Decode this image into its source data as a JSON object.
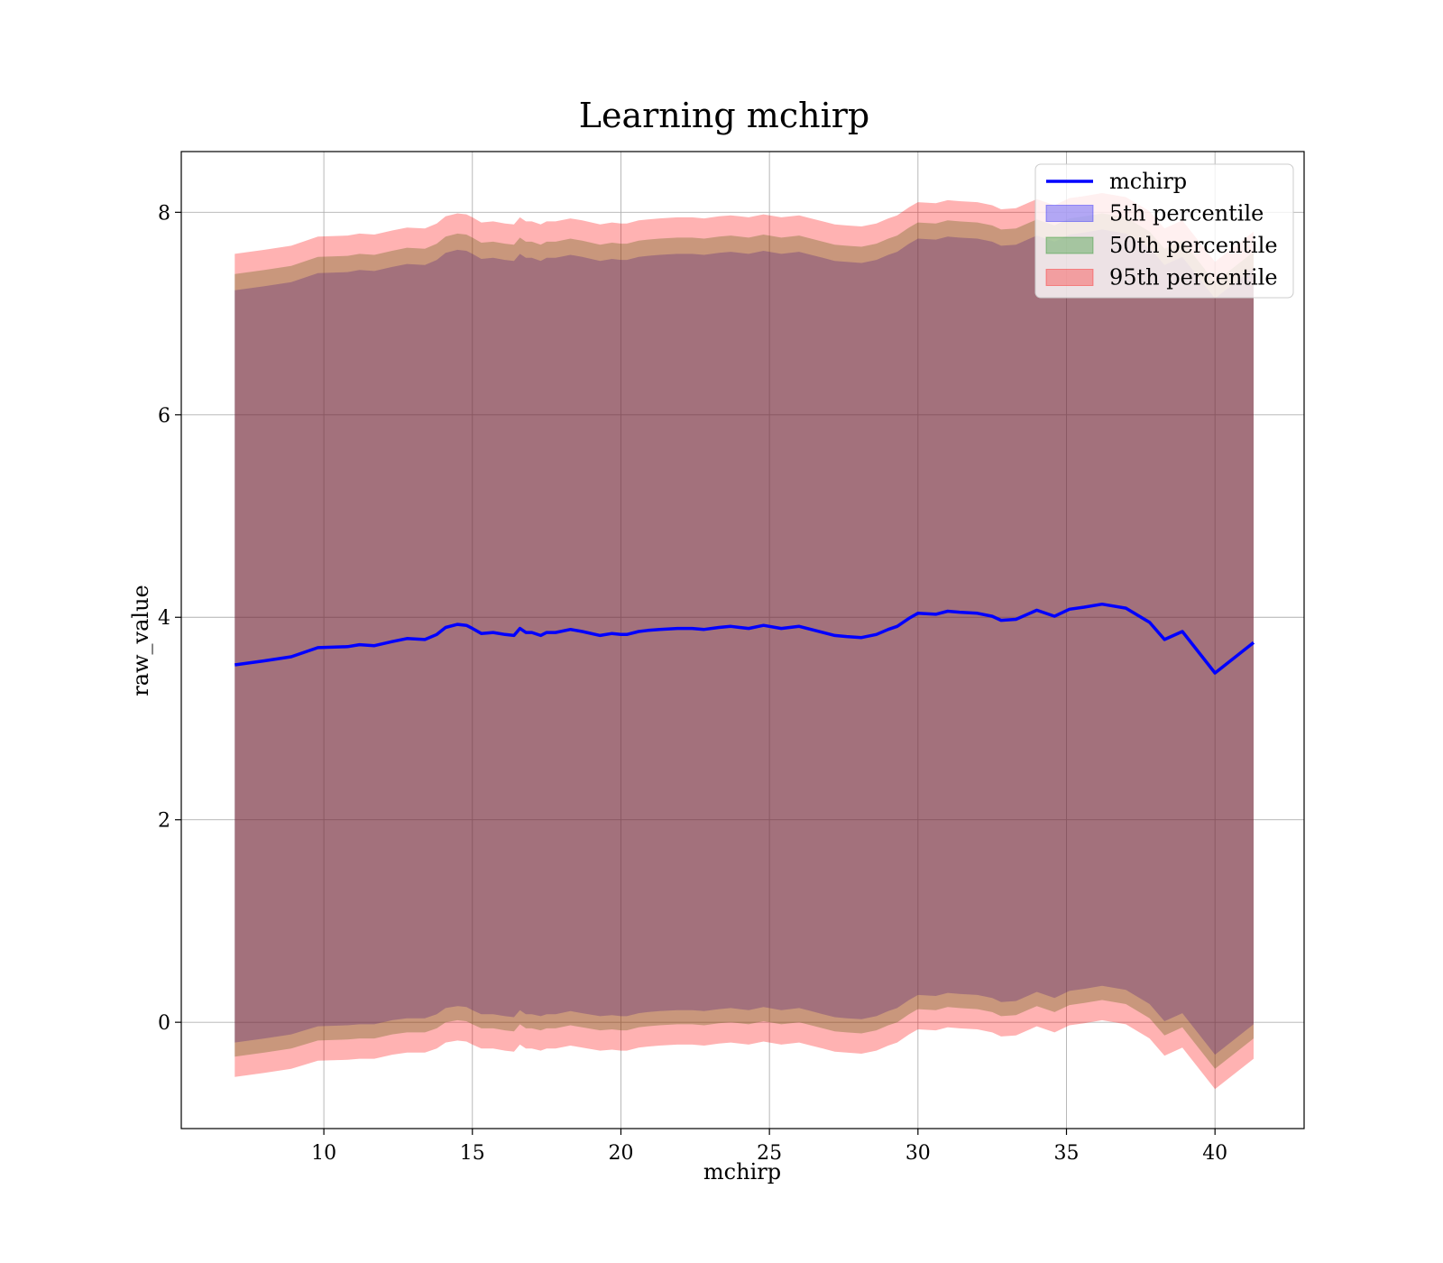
{
  "chart_data": {
    "type": "area",
    "title": "Learning mchirp",
    "xlabel": "mchirp",
    "ylabel": "raw_value",
    "xlim": [
      5.2,
      43.0
    ],
    "ylim": [
      -1.05,
      8.6
    ],
    "xticks": [
      10,
      15,
      20,
      25,
      30,
      35,
      40
    ],
    "yticks": [
      0,
      2,
      4,
      6,
      8
    ],
    "grid": true,
    "legend_position": "top-right",
    "x": [
      7.0,
      8.0,
      8.9,
      9.8,
      10.8,
      11.2,
      11.7,
      12.3,
      12.8,
      13.4,
      13.8,
      14.1,
      14.5,
      14.8,
      15.0,
      15.3,
      15.7,
      16.1,
      16.4,
      16.6,
      16.8,
      17.0,
      17.3,
      17.5,
      17.8,
      18.3,
      18.7,
      19.3,
      19.7,
      20.0,
      20.2,
      20.6,
      20.9,
      21.3,
      21.9,
      22.4,
      22.8,
      23.3,
      23.7,
      24.0,
      24.3,
      24.8,
      25.4,
      26.0,
      26.4,
      26.8,
      27.2,
      27.6,
      28.1,
      28.6,
      29.0,
      29.3,
      29.7,
      30.0,
      30.6,
      31.0,
      31.4,
      32.0,
      32.5,
      32.8,
      33.3,
      34.0,
      34.6,
      35.1,
      35.6,
      36.2,
      37.0,
      37.8,
      38.3,
      38.9,
      40.0,
      41.3
    ],
    "series": [
      {
        "name": "mchirp",
        "values": [
          3.53,
          3.57,
          3.61,
          3.7,
          3.71,
          3.73,
          3.72,
          3.76,
          3.79,
          3.78,
          3.83,
          3.9,
          3.93,
          3.92,
          3.89,
          3.84,
          3.85,
          3.83,
          3.82,
          3.89,
          3.85,
          3.85,
          3.82,
          3.85,
          3.85,
          3.88,
          3.86,
          3.82,
          3.84,
          3.83,
          3.83,
          3.86,
          3.87,
          3.88,
          3.89,
          3.89,
          3.88,
          3.9,
          3.91,
          3.9,
          3.89,
          3.92,
          3.89,
          3.91,
          3.88,
          3.85,
          3.82,
          3.81,
          3.8,
          3.83,
          3.88,
          3.91,
          3.99,
          4.04,
          4.03,
          4.06,
          4.05,
          4.04,
          4.01,
          3.97,
          3.98,
          4.07,
          4.01,
          4.08,
          4.1,
          4.13,
          4.09,
          3.95,
          3.78,
          3.86,
          3.45,
          3.75
        ]
      },
      {
        "name": "5th percentile",
        "color": "#0000ff",
        "opacity": 0.3,
        "lower": [
          -0.2,
          -0.16,
          -0.12,
          -0.04,
          -0.03,
          -0.02,
          -0.02,
          0.02,
          0.04,
          0.04,
          0.08,
          0.14,
          0.16,
          0.15,
          0.12,
          0.08,
          0.08,
          0.06,
          0.05,
          0.12,
          0.08,
          0.08,
          0.06,
          0.08,
          0.08,
          0.11,
          0.09,
          0.06,
          0.07,
          0.06,
          0.06,
          0.09,
          0.1,
          0.11,
          0.12,
          0.12,
          0.11,
          0.13,
          0.14,
          0.13,
          0.12,
          0.15,
          0.12,
          0.14,
          0.11,
          0.08,
          0.05,
          0.04,
          0.03,
          0.06,
          0.11,
          0.14,
          0.22,
          0.27,
          0.26,
          0.29,
          0.28,
          0.27,
          0.24,
          0.2,
          0.21,
          0.3,
          0.24,
          0.31,
          0.33,
          0.36,
          0.32,
          0.18,
          0.01,
          0.09,
          -0.32,
          -0.02
        ],
        "upper": [
          7.23,
          7.27,
          7.31,
          7.4,
          7.41,
          7.43,
          7.42,
          7.46,
          7.49,
          7.48,
          7.53,
          7.6,
          7.63,
          7.62,
          7.59,
          7.54,
          7.55,
          7.53,
          7.52,
          7.59,
          7.55,
          7.55,
          7.52,
          7.55,
          7.55,
          7.58,
          7.56,
          7.52,
          7.54,
          7.53,
          7.53,
          7.56,
          7.57,
          7.58,
          7.59,
          7.59,
          7.58,
          7.6,
          7.61,
          7.6,
          7.59,
          7.62,
          7.59,
          7.61,
          7.58,
          7.55,
          7.52,
          7.51,
          7.5,
          7.53,
          7.58,
          7.61,
          7.69,
          7.74,
          7.73,
          7.76,
          7.75,
          7.74,
          7.71,
          7.67,
          7.68,
          7.77,
          7.71,
          7.78,
          7.8,
          7.83,
          7.79,
          7.65,
          7.48,
          7.56,
          7.15,
          7.45
        ]
      },
      {
        "name": "50th percentile",
        "color": "#008000",
        "opacity": 0.3,
        "lower": [
          -0.34,
          -0.3,
          -0.26,
          -0.18,
          -0.17,
          -0.16,
          -0.16,
          -0.12,
          -0.1,
          -0.1,
          -0.06,
          0.0,
          0.02,
          0.01,
          -0.02,
          -0.06,
          -0.06,
          -0.08,
          -0.09,
          -0.02,
          -0.06,
          -0.06,
          -0.08,
          -0.06,
          -0.06,
          -0.03,
          -0.05,
          -0.08,
          -0.07,
          -0.08,
          -0.08,
          -0.05,
          -0.04,
          -0.03,
          -0.02,
          -0.02,
          -0.03,
          -0.01,
          0.0,
          -0.01,
          -0.02,
          0.01,
          -0.02,
          0.0,
          -0.03,
          -0.06,
          -0.09,
          -0.1,
          -0.11,
          -0.08,
          -0.03,
          0.0,
          0.08,
          0.13,
          0.12,
          0.15,
          0.14,
          0.13,
          0.1,
          0.06,
          0.07,
          0.16,
          0.1,
          0.17,
          0.19,
          0.22,
          0.18,
          0.04,
          -0.13,
          -0.05,
          -0.46,
          -0.16
        ],
        "upper": [
          7.39,
          7.43,
          7.47,
          7.56,
          7.57,
          7.59,
          7.58,
          7.62,
          7.65,
          7.64,
          7.69,
          7.76,
          7.79,
          7.78,
          7.75,
          7.7,
          7.71,
          7.69,
          7.68,
          7.75,
          7.71,
          7.71,
          7.68,
          7.71,
          7.71,
          7.74,
          7.72,
          7.68,
          7.7,
          7.69,
          7.69,
          7.72,
          7.73,
          7.74,
          7.75,
          7.75,
          7.74,
          7.76,
          7.77,
          7.76,
          7.75,
          7.78,
          7.75,
          7.77,
          7.74,
          7.71,
          7.68,
          7.67,
          7.66,
          7.69,
          7.74,
          7.77,
          7.85,
          7.9,
          7.89,
          7.92,
          7.91,
          7.9,
          7.87,
          7.83,
          7.84,
          7.93,
          7.87,
          7.94,
          7.96,
          7.99,
          7.95,
          7.81,
          7.64,
          7.72,
          7.31,
          7.61
        ]
      },
      {
        "name": "95th percentile",
        "color": "#ff0000",
        "opacity": 0.3,
        "lower": [
          -0.54,
          -0.5,
          -0.46,
          -0.38,
          -0.37,
          -0.36,
          -0.36,
          -0.32,
          -0.3,
          -0.3,
          -0.26,
          -0.2,
          -0.18,
          -0.19,
          -0.22,
          -0.26,
          -0.26,
          -0.28,
          -0.29,
          -0.22,
          -0.26,
          -0.26,
          -0.28,
          -0.26,
          -0.26,
          -0.23,
          -0.25,
          -0.28,
          -0.27,
          -0.28,
          -0.28,
          -0.25,
          -0.24,
          -0.23,
          -0.22,
          -0.22,
          -0.23,
          -0.21,
          -0.2,
          -0.21,
          -0.22,
          -0.19,
          -0.22,
          -0.2,
          -0.23,
          -0.26,
          -0.29,
          -0.3,
          -0.31,
          -0.28,
          -0.23,
          -0.2,
          -0.12,
          -0.07,
          -0.08,
          -0.05,
          -0.06,
          -0.07,
          -0.1,
          -0.14,
          -0.13,
          -0.04,
          -0.1,
          -0.03,
          -0.01,
          0.02,
          -0.02,
          -0.16,
          -0.33,
          -0.25,
          -0.66,
          -0.36
        ],
        "upper": [
          7.59,
          7.63,
          7.67,
          7.76,
          7.77,
          7.79,
          7.78,
          7.82,
          7.85,
          7.84,
          7.89,
          7.96,
          7.99,
          7.98,
          7.95,
          7.9,
          7.91,
          7.89,
          7.88,
          7.95,
          7.91,
          7.91,
          7.88,
          7.91,
          7.91,
          7.94,
          7.92,
          7.88,
          7.9,
          7.89,
          7.89,
          7.92,
          7.93,
          7.94,
          7.95,
          7.95,
          7.94,
          7.96,
          7.97,
          7.96,
          7.95,
          7.98,
          7.95,
          7.97,
          7.94,
          7.91,
          7.88,
          7.87,
          7.86,
          7.89,
          7.94,
          7.97,
          8.05,
          8.1,
          8.09,
          8.12,
          8.11,
          8.1,
          8.07,
          8.03,
          8.04,
          8.13,
          8.07,
          8.14,
          8.16,
          8.19,
          8.15,
          8.01,
          7.84,
          7.92,
          7.51,
          7.81
        ]
      }
    ],
    "line_color": "#0000ff"
  }
}
